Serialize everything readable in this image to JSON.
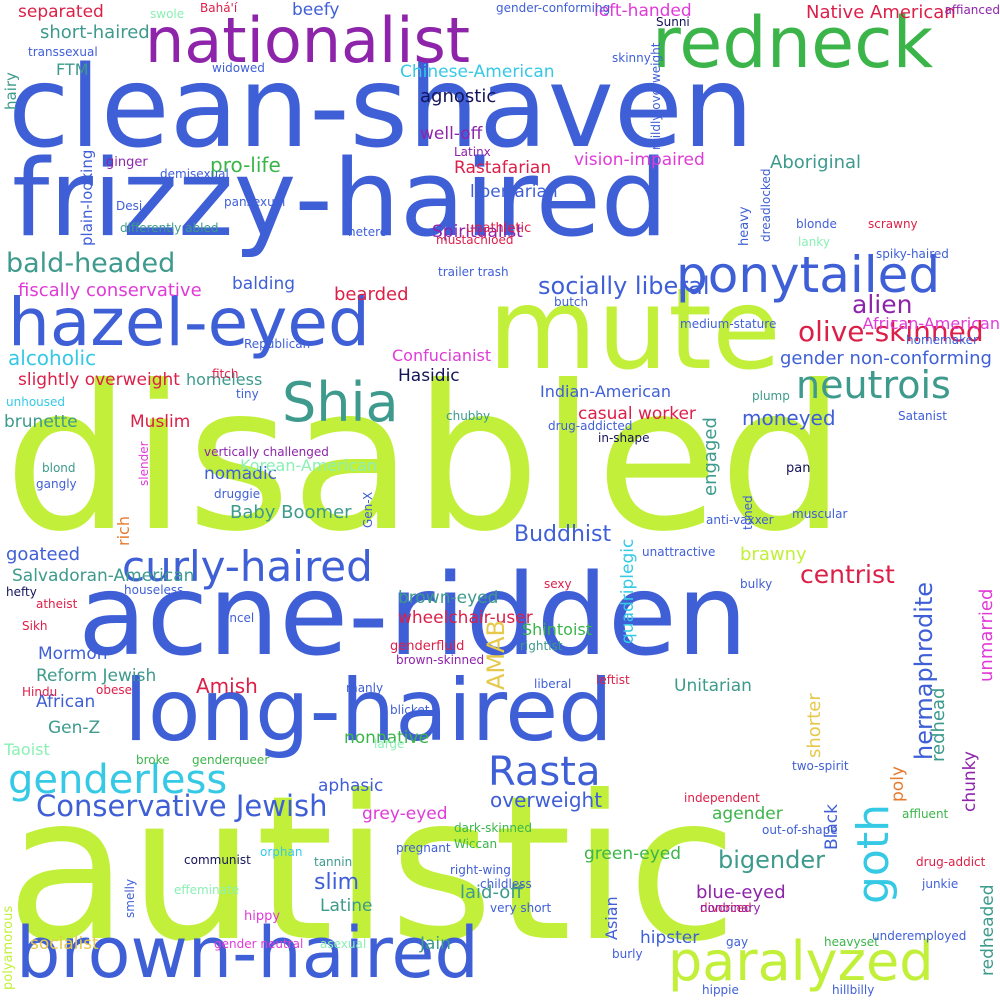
{
  "colors": {
    "blue": "#3f5fd6",
    "lime": "#c2f03a",
    "purple": "#8e24aa",
    "green": "#3bb54a",
    "teal": "#3d9a8c",
    "cyan": "#35c9e6",
    "crimson": "#dc1f48",
    "magenta": "#e03ad8",
    "orange": "#e67a2e",
    "navy": "#14145a",
    "mint": "#8af0b4",
    "tan": "#e6c84a"
  },
  "words": [
    "clean-shaven",
    "frizzy-haired",
    "disabled",
    "autistic",
    "acne-ridden",
    "mute",
    "nationalist",
    "redneck",
    "hazel-eyed",
    "long-haired",
    "brown-haired",
    "Shia",
    "ponytailed",
    "curly-haired",
    "genderless",
    "paralyzed",
    "neutrois",
    "Rasta",
    "bald-headed",
    "Conservative Jewish",
    "olive-skinned",
    "alien",
    "centrist",
    "separated",
    "left-handed",
    "Native American",
    "affianced",
    "beefy",
    "short-haired",
    "agnostic",
    "well-off",
    "pro-life",
    "vision-impaired",
    "Aboriginal",
    "Spiritualist",
    "fiscally conservative",
    "socially liberal",
    "balding",
    "bearded",
    "alcoholic",
    "gender non-conforming",
    "slightly overweight",
    "homeless",
    "Hasidic",
    "moneyed",
    "brunette",
    "Muslim",
    "casual worker",
    "nomadic",
    "Baby Boomer",
    "slim",
    "Buddhist",
    "goateed",
    "brawny",
    "Salvadoran-American",
    "brown-eyed",
    "wheelchair-user",
    "Shintoist",
    "Amish",
    "African",
    "Gen-Z",
    "nonnative",
    "aphasic",
    "overweight",
    "grey-eyed",
    "agender",
    "bigender",
    "green-eyed",
    "blue-eyed",
    "Latine",
    "laid-off",
    "Jain",
    "hipster",
    "socialist",
    "Unitarian",
    "Mormon",
    "Reform Jewish",
    "FTM",
    "Chinese-American",
    "Rastafarian",
    "libertarian",
    "African-American",
    "Indian-American",
    "Korean-American",
    "Confucianist",
    "Taoist",
    "swole",
    "Bahá'í",
    "gender-conforming",
    "Sunni",
    "transsexual",
    "widowed",
    "skinny",
    "Latinx",
    "ginger",
    "demisexual",
    "Desi",
    "pansexual",
    "differently abled",
    "hetero",
    "unathletic",
    "mustachioed",
    "trailer trash",
    "blonde",
    "scrawny",
    "lanky",
    "spiky-haired",
    "butch",
    "medium-stature",
    "homemaker",
    "Republican",
    "fitch",
    "tiny",
    "plump",
    "Satanist",
    "chubby",
    "unhoused",
    "drug-addicted",
    "in-shape",
    "vertically challenged",
    "blond",
    "gangly",
    "druggie",
    "pan",
    "anti-vaxxer",
    "muscular",
    "sexy",
    "unattractive",
    "hefty",
    "houseless",
    "bulky",
    "atheist",
    "incel",
    "Sikh",
    "genderfluid",
    "brown-skinned",
    "rightist",
    "leftist",
    "liberal",
    "Hindu",
    "obese",
    "manly",
    "blicket",
    "broke",
    "genderqueer",
    "large",
    "two-spirit",
    "independent",
    "out-of-shape",
    "affluent",
    "dark-skinned",
    "Wiccan",
    "orphan",
    "tannin",
    "pregnant",
    "drug-addict",
    "communist",
    "right-wing",
    "childless",
    "effeminate",
    "divorced",
    "junkie",
    "very short",
    "nonbinary",
    "hippy",
    "gender neutral",
    "asexual",
    "gay",
    "heavyset",
    "underemployed",
    "burly",
    "hippie",
    "hillbilly",
    "goth",
    "AMAB",
    "hermaphrodite",
    "redhead",
    "engaged",
    "rich",
    "plain-looking",
    "hairy",
    "shorter",
    "poly",
    "unmarried",
    "chunky",
    "redheaded",
    "quadriplegic",
    "Black",
    "Asian",
    "polyamorous",
    "smelly",
    "slender",
    "Gen-X",
    "toned",
    "heavy",
    "dreadlocked",
    "mildly overweight"
  ]
}
